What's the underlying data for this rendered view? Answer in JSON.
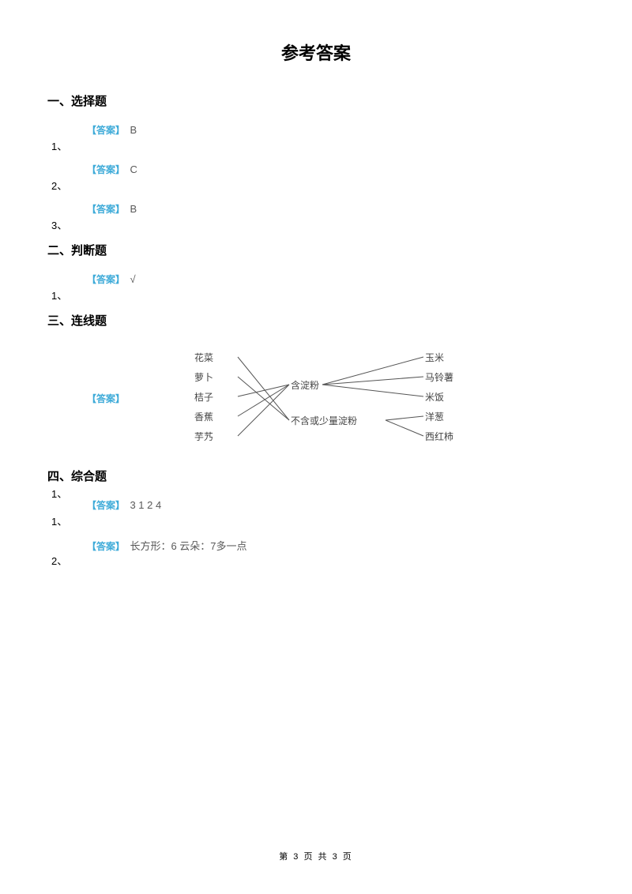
{
  "title": "参考答案",
  "sections": {
    "choice": {
      "heading": "一、选择题",
      "items": [
        {
          "num": "1、",
          "label": "【答案】",
          "value": "B"
        },
        {
          "num": "2、",
          "label": "【答案】",
          "value": "C"
        },
        {
          "num": "3、",
          "label": "【答案】",
          "value": "B"
        }
      ]
    },
    "judge": {
      "heading": "二、判断题",
      "items": [
        {
          "num": "1、",
          "label": "【答案】",
          "value": "√"
        }
      ]
    },
    "match": {
      "heading": "三、连线题",
      "num": "1、",
      "label": "【答案】",
      "diagram": {
        "leftItems": [
          "花菜",
          "萝卜",
          "桔子",
          "香蕉",
          "芋艿"
        ],
        "middleItems": [
          "含淀粉",
          "不含或少量淀粉"
        ],
        "rightItems": [
          "玉米",
          "马铃薯",
          "米饭",
          "洋葱",
          "西红柿"
        ],
        "leftX": 58,
        "midX1": 180,
        "midX2": 330,
        "rightX": 350,
        "leftYs": [
          10,
          35,
          60,
          85,
          110
        ],
        "midYs": [
          45,
          90
        ],
        "rightYs": [
          10,
          35,
          60,
          85,
          110
        ],
        "leftLineX1": 85,
        "leftLineX2": 178,
        "rightLineX1": 220,
        "rightLineX1b": 300,
        "rightLineX2": 348,
        "leftLines": [
          {
            "from": 0,
            "to": 1
          },
          {
            "from": 1,
            "to": 1
          },
          {
            "from": 2,
            "to": 0
          },
          {
            "from": 3,
            "to": 0
          },
          {
            "from": 4,
            "to": 0
          }
        ],
        "rightLines": [
          {
            "from": 0,
            "to": 0
          },
          {
            "from": 0,
            "to": 1
          },
          {
            "from": 0,
            "to": 2
          },
          {
            "from": 1,
            "to": 3
          },
          {
            "from": 1,
            "to": 4
          }
        ],
        "line_color": "#555555"
      }
    },
    "comprehensive": {
      "heading": "四、综合题",
      "items": [
        {
          "num": "1、",
          "label": "【答案】",
          "value": "3 1 2 4"
        },
        {
          "num": "2、",
          "label": "【答案】",
          "value": "长方形：6 云朵：7多一点"
        }
      ]
    }
  },
  "footer": "第 3 页 共 3 页",
  "colors": {
    "answer_label": "#3caad8",
    "text": "#000000",
    "value": "#595959",
    "background": "#ffffff"
  }
}
